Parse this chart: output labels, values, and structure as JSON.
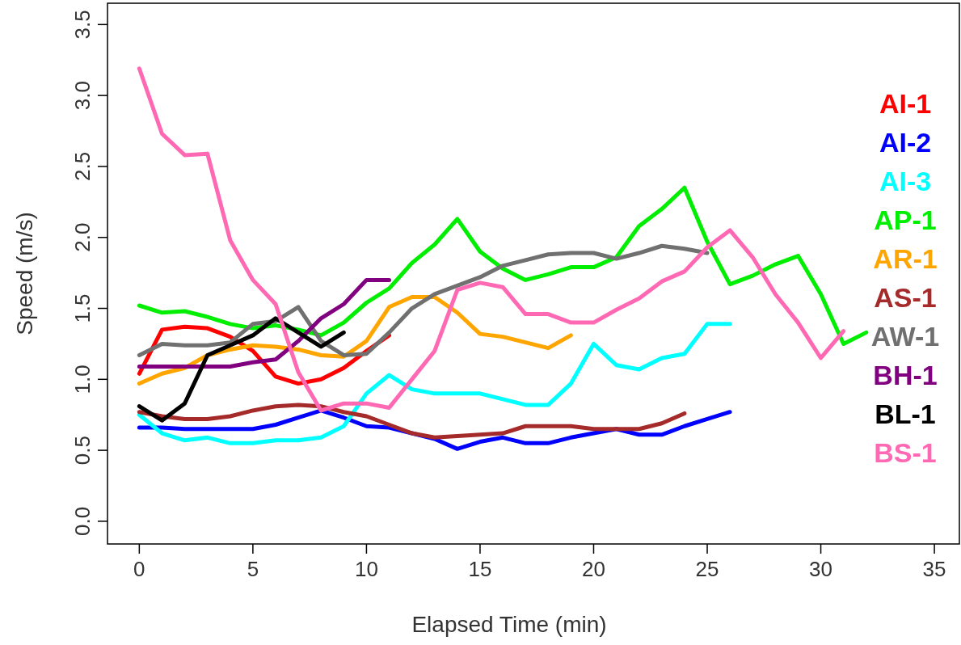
{
  "chart_data": {
    "type": "line",
    "xlabel": "Elapsed Time (min)",
    "ylabel": "Speed (m/s)",
    "xlim": [
      -1.4,
      36.1
    ],
    "ylim": [
      -0.16,
      3.65
    ],
    "xticks": [
      0,
      5,
      10,
      15,
      20,
      25,
      30,
      35
    ],
    "yticks": [
      {
        "value": 0,
        "label": "0.0"
      },
      {
        "value": 0.5,
        "label": "0.5"
      },
      {
        "value": 1,
        "label": "1.0"
      },
      {
        "value": 1.5,
        "label": "1.5"
      },
      {
        "value": 2,
        "label": "2.0"
      },
      {
        "value": 2.5,
        "label": "2.5"
      },
      {
        "value": 3,
        "label": "3.0"
      },
      {
        "value": 3.5,
        "label": "3.5"
      }
    ],
    "grid": false,
    "legend": "right",
    "line_style": "solid",
    "marker": "none",
    "series": [
      {
        "name": "AI-1",
        "color": "#ff0000",
        "x": [
          0,
          1,
          2,
          3,
          4,
          5,
          6,
          7,
          8,
          9,
          10,
          11
        ],
        "values": [
          1.04,
          1.35,
          1.37,
          1.36,
          1.3,
          1.2,
          1.02,
          0.97,
          1.0,
          1.08,
          1.2,
          1.31
        ]
      },
      {
        "name": "AI-2",
        "color": "#0000ff",
        "x": [
          0,
          1,
          2,
          3,
          4,
          5,
          6,
          7,
          8,
          9,
          10,
          11,
          12,
          13,
          14,
          15,
          16,
          17,
          18,
          19,
          20,
          21,
          22,
          23,
          24,
          25,
          26
        ],
        "values": [
          0.66,
          0.66,
          0.65,
          0.65,
          0.65,
          0.65,
          0.68,
          0.73,
          0.78,
          0.73,
          0.67,
          0.66,
          0.62,
          0.58,
          0.51,
          0.56,
          0.59,
          0.55,
          0.55,
          0.59,
          0.62,
          0.65,
          0.61,
          0.61,
          0.67,
          0.72,
          0.77
        ]
      },
      {
        "name": "AI-3",
        "color": "#00ffff",
        "x": [
          0,
          1,
          2,
          3,
          4,
          5,
          6,
          7,
          8,
          9,
          10,
          11,
          12,
          13,
          14,
          15,
          16,
          17,
          18,
          19,
          20,
          21,
          22,
          23,
          24,
          25,
          26
        ],
        "values": [
          0.75,
          0.62,
          0.57,
          0.59,
          0.55,
          0.55,
          0.57,
          0.57,
          0.59,
          0.67,
          0.9,
          1.03,
          0.93,
          0.9,
          0.9,
          0.9,
          0.86,
          0.82,
          0.82,
          0.97,
          1.25,
          1.1,
          1.07,
          1.15,
          1.18,
          1.39,
          1.39
        ]
      },
      {
        "name": "AP-1",
        "color": "#00ee00",
        "x": [
          0,
          1,
          2,
          3,
          4,
          5,
          6,
          7,
          8,
          9,
          10,
          11,
          12,
          13,
          14,
          15,
          16,
          17,
          18,
          19,
          20,
          21,
          22,
          23,
          24,
          25,
          26,
          27,
          28,
          29,
          30,
          31,
          32
        ],
        "values": [
          1.52,
          1.47,
          1.48,
          1.44,
          1.39,
          1.36,
          1.38,
          1.35,
          1.31,
          1.4,
          1.54,
          1.64,
          1.82,
          1.95,
          2.13,
          1.9,
          1.78,
          1.7,
          1.74,
          1.79,
          1.79,
          1.86,
          2.08,
          2.2,
          2.35,
          1.97,
          1.67,
          1.73,
          1.81,
          1.87,
          1.6,
          1.25,
          1.33
        ]
      },
      {
        "name": "AR-1",
        "color": "#ffa500",
        "x": [
          0,
          1,
          2,
          3,
          4,
          5,
          6,
          7,
          8,
          9,
          10,
          11,
          12,
          13,
          14,
          15,
          16,
          17,
          18,
          19
        ],
        "values": [
          0.97,
          1.04,
          1.08,
          1.17,
          1.21,
          1.24,
          1.23,
          1.21,
          1.17,
          1.16,
          1.27,
          1.51,
          1.58,
          1.58,
          1.47,
          1.32,
          1.3,
          1.26,
          1.22,
          1.31
        ]
      },
      {
        "name": "AS-1",
        "color": "#a52a2a",
        "x": [
          0,
          1,
          2,
          3,
          4,
          5,
          6,
          7,
          8,
          9,
          10,
          11,
          12,
          13,
          14,
          15,
          16,
          17,
          18,
          19,
          20,
          21,
          22,
          23,
          24
        ],
        "values": [
          0.77,
          0.74,
          0.72,
          0.72,
          0.74,
          0.78,
          0.81,
          0.82,
          0.81,
          0.77,
          0.74,
          0.68,
          0.62,
          0.59,
          0.6,
          0.61,
          0.62,
          0.67,
          0.67,
          0.67,
          0.65,
          0.65,
          0.65,
          0.69,
          0.76
        ]
      },
      {
        "name": "AW-1",
        "color": "#707070",
        "x": [
          0,
          1,
          2,
          3,
          4,
          5,
          6,
          7,
          8,
          9,
          10,
          11,
          12,
          13,
          14,
          15,
          16,
          17,
          18,
          19,
          20,
          21,
          22,
          23,
          24,
          25
        ],
        "values": [
          1.17,
          1.25,
          1.24,
          1.24,
          1.26,
          1.39,
          1.41,
          1.51,
          1.27,
          1.17,
          1.18,
          1.33,
          1.5,
          1.6,
          1.66,
          1.72,
          1.8,
          1.84,
          1.88,
          1.89,
          1.89,
          1.85,
          1.89,
          1.94,
          1.92,
          1.89
        ]
      },
      {
        "name": "BH-1",
        "color": "#800080",
        "x": [
          0,
          1,
          2,
          3,
          4,
          5,
          6,
          7,
          8,
          9,
          10,
          11
        ],
        "values": [
          1.09,
          1.09,
          1.09,
          1.09,
          1.09,
          1.12,
          1.14,
          1.27,
          1.43,
          1.53,
          1.7,
          1.7
        ]
      },
      {
        "name": "BL-1",
        "color": "#000000",
        "x": [
          0,
          1,
          2,
          3,
          4,
          5,
          6,
          7,
          8,
          9
        ],
        "values": [
          0.81,
          0.71,
          0.83,
          1.17,
          1.24,
          1.31,
          1.43,
          1.33,
          1.23,
          1.33
        ]
      },
      {
        "name": "BS-1",
        "color": "#ff69b4",
        "x": [
          0,
          1,
          2,
          3,
          4,
          5,
          6,
          7,
          8,
          9,
          10,
          11,
          12,
          13,
          14,
          15,
          16,
          17,
          18,
          19,
          20,
          21,
          22,
          23,
          24,
          25,
          26,
          27,
          28,
          29,
          30,
          31
        ],
        "values": [
          3.19,
          2.73,
          2.58,
          2.59,
          1.98,
          1.7,
          1.53,
          1.05,
          0.78,
          0.83,
          0.83,
          0.8,
          1.0,
          1.2,
          1.63,
          1.68,
          1.65,
          1.46,
          1.46,
          1.4,
          1.4,
          1.49,
          1.57,
          1.69,
          1.76,
          1.93,
          2.05,
          1.86,
          1.6,
          1.4,
          1.15,
          1.34
        ]
      }
    ]
  }
}
